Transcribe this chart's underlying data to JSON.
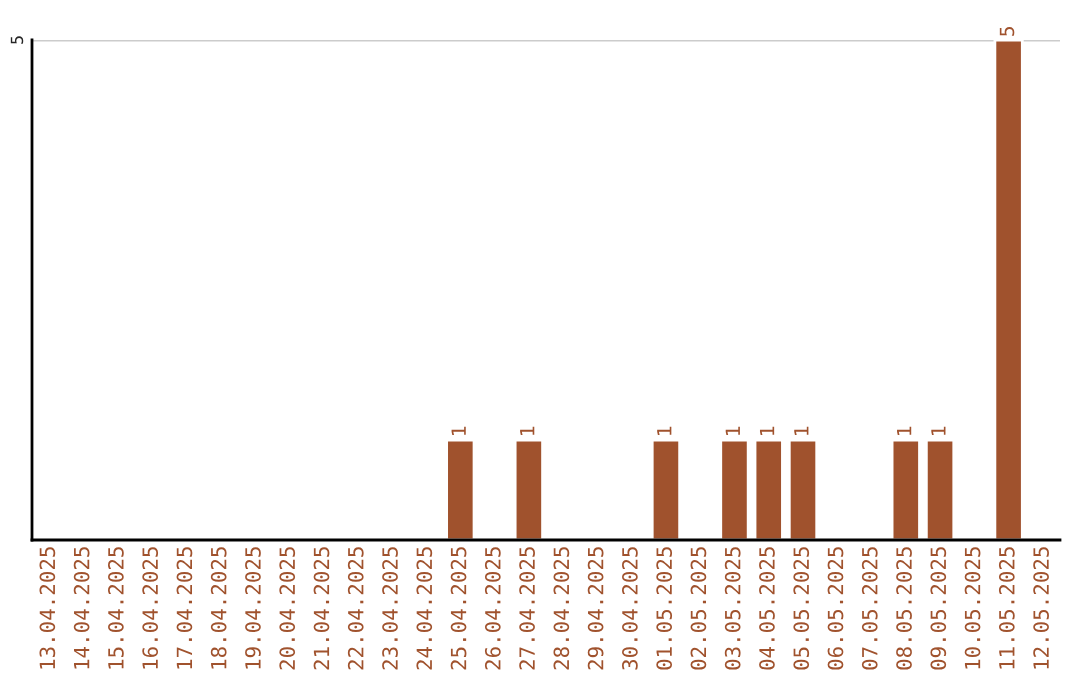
{
  "chart_data": {
    "type": "bar",
    "categories": [
      "13.04.2025",
      "14.04.2025",
      "15.04.2025",
      "16.04.2025",
      "17.04.2025",
      "18.04.2025",
      "19.04.2025",
      "20.04.2025",
      "21.04.2025",
      "22.04.2025",
      "23.04.2025",
      "24.04.2025",
      "25.04.2025",
      "26.04.2025",
      "27.04.2025",
      "28.04.2025",
      "29.04.2025",
      "30.04.2025",
      "01.05.2025",
      "02.05.2025",
      "03.05.2025",
      "04.05.2025",
      "05.05.2025",
      "06.05.2025",
      "07.05.2025",
      "08.05.2025",
      "09.05.2025",
      "10.05.2025",
      "11.05.2025",
      "12.05.2025"
    ],
    "values": [
      null,
      null,
      null,
      null,
      null,
      null,
      null,
      null,
      null,
      null,
      null,
      null,
      1,
      null,
      1,
      null,
      null,
      null,
      1,
      null,
      1,
      1,
      1,
      null,
      null,
      1,
      1,
      null,
      5,
      null
    ],
    "data_labels": true,
    "color": "#a0522d",
    "ylim": [
      0,
      5
    ],
    "yticks": [
      5
    ],
    "ref_lines": [
      {
        "axis": "y",
        "value": 5,
        "color": "#cccccc"
      }
    ],
    "legend": false
  }
}
